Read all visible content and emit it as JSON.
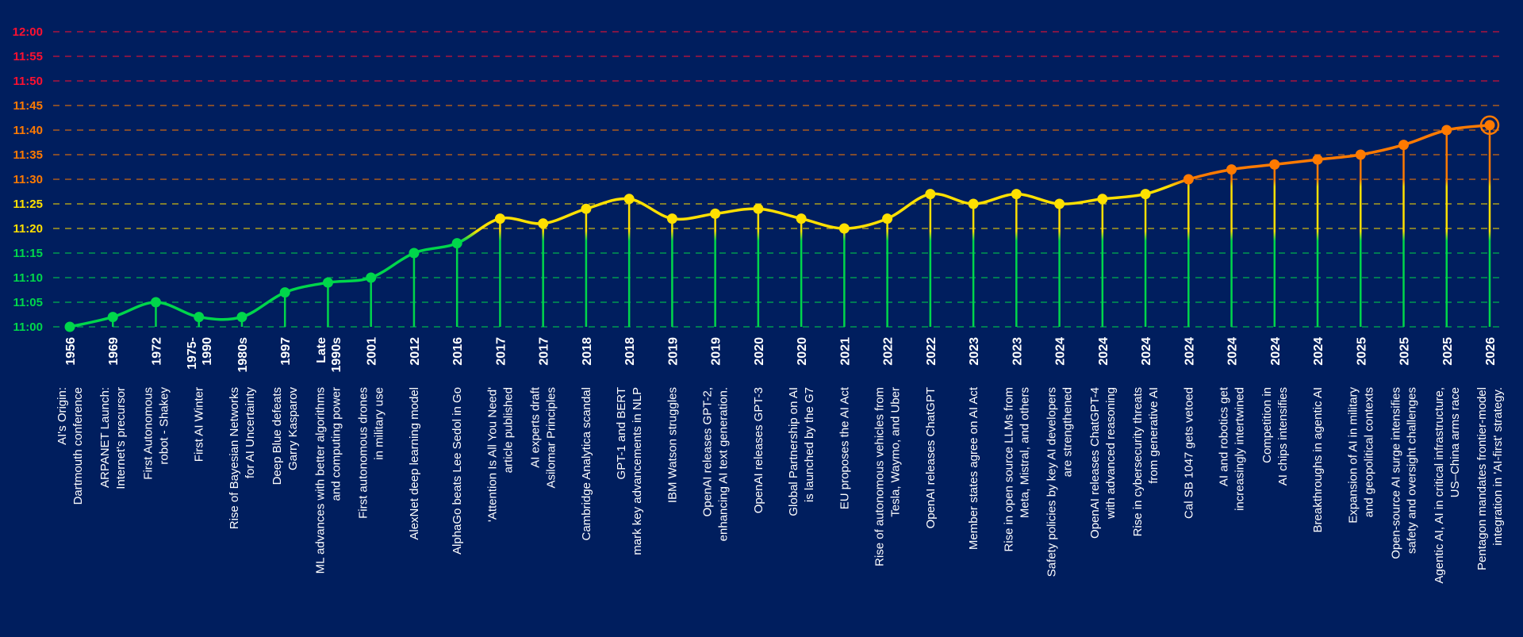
{
  "chart_data": {
    "type": "line",
    "title": "",
    "xlabel": "",
    "ylabel": "",
    "ylim": [
      "11:00",
      "12:00"
    ],
    "y_ticks": [
      "11:00",
      "11:05",
      "11:10",
      "11:15",
      "11:20",
      "11:25",
      "11:30",
      "11:35",
      "11:40",
      "11:45",
      "11:50",
      "11:55",
      "12:00"
    ],
    "grid": "horizontal dashed",
    "colors": {
      "background": "#001E5E",
      "green": "#00D64B",
      "yellow": "#FFE000",
      "orange": "#FF7A00",
      "red": "#FF1030"
    },
    "highlight_last": true,
    "points": [
      {
        "year": [
          "1956"
        ],
        "desc": [
          "AI's Origin:",
          "Dartmouth conference"
        ],
        "time": "11:00"
      },
      {
        "year": [
          "1969"
        ],
        "desc": [
          "ARPANET Launch:",
          "Internet's precursor"
        ],
        "time": "11:02"
      },
      {
        "year": [
          "1972"
        ],
        "desc": [
          "First Autonomous",
          "robot - Shakey"
        ],
        "time": "11:05"
      },
      {
        "year": [
          "1975-",
          "1990"
        ],
        "desc": [
          "First AI Winter"
        ],
        "time": "11:02"
      },
      {
        "year": [
          "1980s"
        ],
        "desc": [
          "Rise of Bayesian Networks",
          "for AI Uncertainty"
        ],
        "time": "11:02"
      },
      {
        "year": [
          "1997"
        ],
        "desc": [
          "Deep Blue defeats",
          "Garry Kasparov"
        ],
        "time": "11:07"
      },
      {
        "year": [
          "Late",
          "1990s"
        ],
        "desc": [
          "ML advances with better algorithms",
          "and computing power"
        ],
        "time": "11:09"
      },
      {
        "year": [
          "2001"
        ],
        "desc": [
          "First autonomous drones",
          "in military use"
        ],
        "time": "11:10"
      },
      {
        "year": [
          "2012"
        ],
        "desc": [
          "AlexNet deep learning model"
        ],
        "time": "11:15"
      },
      {
        "year": [
          "2016"
        ],
        "desc": [
          "AlphaGo beats Lee Sedol in Go"
        ],
        "time": "11:17"
      },
      {
        "year": [
          "2017"
        ],
        "desc": [
          "'Attention Is All You Need'",
          "article published"
        ],
        "time": "11:22"
      },
      {
        "year": [
          "2017"
        ],
        "desc": [
          "AI experts draft",
          "Asilomar Principles"
        ],
        "time": "11:21"
      },
      {
        "year": [
          "2018"
        ],
        "desc": [
          "Cambridge Analytica scandal"
        ],
        "time": "11:24"
      },
      {
        "year": [
          "2018"
        ],
        "desc": [
          "GPT-1 and BERT",
          "mark key advancements in NLP"
        ],
        "time": "11:26"
      },
      {
        "year": [
          "2019"
        ],
        "desc": [
          "IBM Watson struggles"
        ],
        "time": "11:22"
      },
      {
        "year": [
          "2019"
        ],
        "desc": [
          "OpenAI releases GPT-2,",
          "enhancing AI text generation."
        ],
        "time": "11:23"
      },
      {
        "year": [
          "2020"
        ],
        "desc": [
          "OpenAI releases GPT-3"
        ],
        "time": "11:24"
      },
      {
        "year": [
          "2020"
        ],
        "desc": [
          "Global Partnership on AI",
          "is launched by the G7"
        ],
        "time": "11:22"
      },
      {
        "year": [
          "2021"
        ],
        "desc": [
          "EU proposes the AI Act"
        ],
        "time": "11:20"
      },
      {
        "year": [
          "2022"
        ],
        "desc": [
          "Rise of autonomous vehicles from",
          "Tesla, Waymo, and Uber"
        ],
        "time": "11:22"
      },
      {
        "year": [
          "2022"
        ],
        "desc": [
          "OpenAI releases ChatGPT"
        ],
        "time": "11:27"
      },
      {
        "year": [
          "2023"
        ],
        "desc": [
          "Member states agree on AI Act"
        ],
        "time": "11:25"
      },
      {
        "year": [
          "2023"
        ],
        "desc": [
          "Rise in open source LLMs from",
          "Meta, Mistral, and others"
        ],
        "time": "11:27"
      },
      {
        "year": [
          "2024"
        ],
        "desc": [
          "Safety policies by key AI developers",
          "are strengthened"
        ],
        "time": "11:25"
      },
      {
        "year": [
          "2024"
        ],
        "desc": [
          "OpenAI releases ChatGPT-4",
          "with advanced reasoning"
        ],
        "time": "11:26"
      },
      {
        "year": [
          "2024"
        ],
        "desc": [
          "Rise in cybersecurity threats",
          "from generative AI"
        ],
        "time": "11:27"
      },
      {
        "year": [
          "2024"
        ],
        "desc": [
          "Cal SB 1047 gets vetoed"
        ],
        "time": "11:30"
      },
      {
        "year": [
          "2024"
        ],
        "desc": [
          "AI and robotics get",
          "increasingly intertwined"
        ],
        "time": "11:32"
      },
      {
        "year": [
          "2024"
        ],
        "desc": [
          "Competition in",
          "AI chips intensifies"
        ],
        "time": "11:33"
      },
      {
        "year": [
          "2024"
        ],
        "desc": [
          "Breakthroughs in agentic AI"
        ],
        "time": "11:34"
      },
      {
        "year": [
          "2025"
        ],
        "desc": [
          "Expansion of AI in military",
          "and geopolitical contexts"
        ],
        "time": "11:35"
      },
      {
        "year": [
          "2025"
        ],
        "desc": [
          "Open-source AI surge intensifies",
          "safety and oversight challenges"
        ],
        "time": "11:37"
      },
      {
        "year": [
          "2025"
        ],
        "desc": [
          "Agentic AI, AI in critical infrastructure,",
          "US–China arms race"
        ],
        "time": "11:40"
      },
      {
        "year": [
          "2026"
        ],
        "desc": [
          "Pentagon mandates frontier-model",
          "integration in 'AI-first' strategy."
        ],
        "time": "11:41"
      }
    ]
  }
}
